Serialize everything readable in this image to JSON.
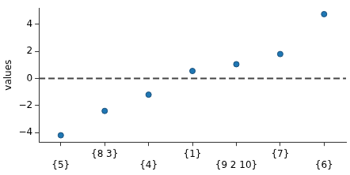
{
  "chart_data": {
    "type": "scatter",
    "y_label": "values",
    "categories": [
      "{5}",
      "{8 3}",
      "{4}",
      "{1}",
      "{9 2 10}",
      "{7}",
      "{6}"
    ],
    "values": [
      -4.2,
      -2.4,
      -1.2,
      0.55,
      1.05,
      1.8,
      4.75
    ],
    "color": "#1f77b4",
    "marker": "circle",
    "hline": 0,
    "ylim": [
      -4.7,
      5.2
    ],
    "yticks": [
      {
        "value": -4,
        "label": "−4"
      },
      {
        "value": -2,
        "label": "−2"
      },
      0,
      2,
      4
    ],
    "grid": false
  }
}
